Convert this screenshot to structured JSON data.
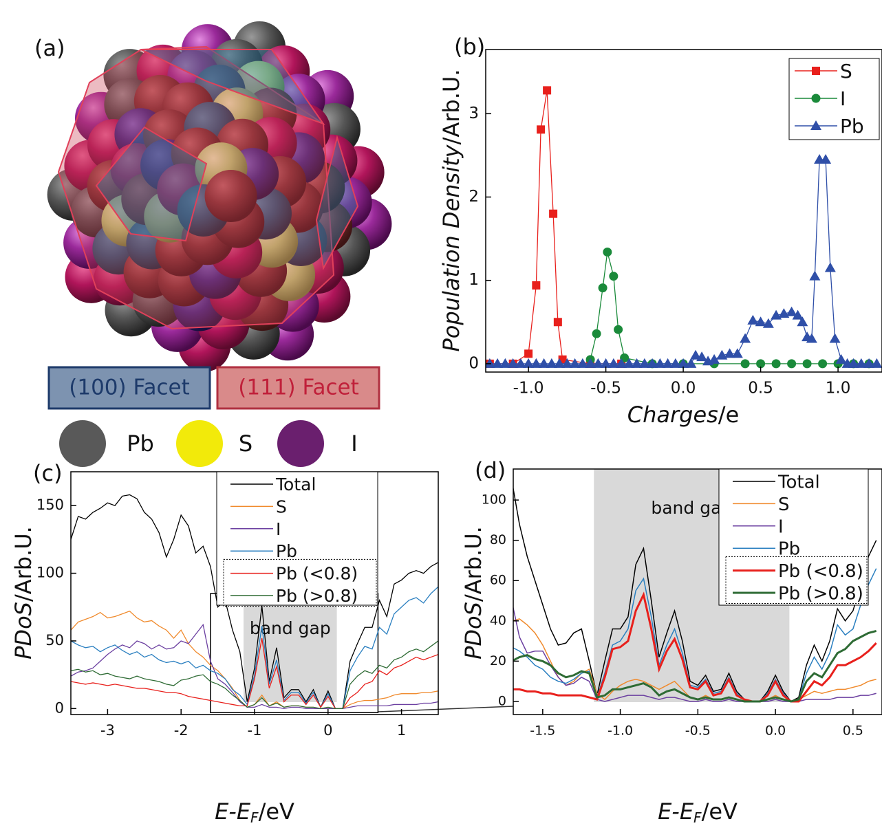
{
  "panel_a": {
    "panel_label": "(a)",
    "facets": [
      "(100) Facet",
      "(111) Facet"
    ],
    "legend": [
      {
        "name": "Pb",
        "color": "#595959"
      },
      {
        "name": "S",
        "color": "#f2ea0a"
      },
      {
        "name": "I",
        "color": "#6a1f6e"
      }
    ]
  },
  "chart_data": [
    {
      "type": "line",
      "panel_label": "(b)",
      "xlabel": {
        "italic": "Charges",
        "unit": "/e"
      },
      "ylabel": {
        "italic": "Population Density",
        "unit": "/Arb.U."
      },
      "xlim": [
        -1.276,
        1.284
      ],
      "ylim": [
        -0.1,
        3.77
      ],
      "xticks": [
        {
          "value": -1,
          "label": "-1.0"
        },
        -0.5,
        {
          "value": 0,
          "label": "0.0"
        },
        0.5,
        {
          "value": 1,
          "label": "1.0"
        }
      ],
      "yticks": [
        0,
        1,
        2,
        3
      ],
      "series": [
        {
          "name": "S",
          "color": "#e8201c",
          "marker": "square",
          "x": [
            -1.25,
            -1.1,
            -1.0,
            -0.95,
            -0.92,
            -0.88,
            -0.84,
            -0.81,
            -0.78,
            -0.6,
            -0.4
          ],
          "values": [
            0,
            0,
            0.12,
            0.94,
            2.81,
            3.28,
            1.8,
            0.5,
            0.05,
            0,
            0
          ]
        },
        {
          "name": "I",
          "color": "#1a8a3a",
          "marker": "circle",
          "x": [
            -0.6,
            -0.56,
            -0.52,
            -0.49,
            -0.45,
            -0.42,
            -0.38,
            -0.2,
            0.0,
            0.2,
            0.4,
            0.5,
            0.6,
            0.7,
            0.8,
            0.9,
            1.0,
            1.1,
            1.2
          ],
          "values": [
            0.05,
            0.36,
            0.91,
            1.34,
            1.05,
            0.41,
            0.07,
            0,
            0,
            0,
            0,
            0,
            0,
            0,
            0,
            0,
            0,
            0,
            0
          ]
        },
        {
          "name": "Pb",
          "color": "#2f4fa8",
          "marker": "triangle",
          "x": [
            -1.25,
            -1.2,
            -1.15,
            -1.1,
            -1.05,
            -1.0,
            -0.95,
            -0.9,
            -0.85,
            -0.8,
            -0.75,
            -0.7,
            -0.65,
            -0.6,
            -0.55,
            -0.5,
            -0.45,
            -0.4,
            -0.35,
            -0.3,
            -0.25,
            -0.2,
            -0.15,
            -0.1,
            -0.05,
            0.0,
            0.05,
            0.08,
            0.12,
            0.16,
            0.2,
            0.25,
            0.3,
            0.35,
            0.4,
            0.45,
            0.5,
            0.55,
            0.6,
            0.65,
            0.7,
            0.74,
            0.77,
            0.8,
            0.83,
            0.85,
            0.88,
            0.92,
            0.95,
            0.98,
            1.02,
            1.06,
            1.1,
            1.15,
            1.2,
            1.25
          ],
          "values": [
            0,
            0,
            0,
            0,
            0,
            0,
            0,
            0,
            0,
            0,
            0,
            0,
            0,
            0,
            0,
            0,
            0,
            0,
            0,
            0,
            0,
            0,
            0,
            0,
            0,
            0,
            0,
            0.1,
            0.08,
            0.03,
            0.05,
            0.1,
            0.12,
            0.12,
            0.3,
            0.52,
            0.5,
            0.48,
            0.58,
            0.6,
            0.62,
            0.58,
            0.5,
            0.32,
            0.3,
            1.05,
            2.45,
            2.45,
            1.15,
            0.3,
            0.05,
            0,
            0,
            0,
            0,
            0
          ]
        }
      ]
    },
    {
      "type": "line",
      "panel_label": "(c)",
      "xlabel": {
        "italic": "E-E",
        "sub": "F",
        "unit": "/eV"
      },
      "ylabel": {
        "italic": "PDoS",
        "unit": "/Arb.U."
      },
      "xlim": [
        -3.5,
        1.5
      ],
      "ylim": [
        -4.4,
        175
      ],
      "xticks": [
        -3,
        -2,
        -1,
        0,
        1
      ],
      "yticks": [
        0,
        50,
        100,
        150
      ],
      "band_gap": {
        "label": "band gap",
        "xrange": [
          -1.15,
          0.12
        ]
      },
      "zoom_box": {
        "xrange": [
          -1.6,
          0.68
        ],
        "yrange": [
          -3,
          85
        ]
      },
      "x": [
        -3.5,
        -3.4,
        -3.3,
        -3.2,
        -3.1,
        -3.0,
        -2.9,
        -2.8,
        -2.7,
        -2.6,
        -2.5,
        -2.4,
        -2.3,
        -2.2,
        -2.1,
        -2.0,
        -1.9,
        -1.8,
        -1.7,
        -1.6,
        -1.5,
        -1.4,
        -1.3,
        -1.2,
        -1.1,
        -1.0,
        -0.9,
        -0.8,
        -0.7,
        -0.6,
        -0.5,
        -0.4,
        -0.3,
        -0.2,
        -0.1,
        0.0,
        0.1,
        0.2,
        0.3,
        0.4,
        0.5,
        0.6,
        0.7,
        0.8,
        0.9,
        1.0,
        1.1,
        1.2,
        1.3,
        1.4,
        1.5
      ],
      "series": [
        {
          "name": "Total",
          "color": "#000000",
          "values": [
            125,
            142,
            140,
            145,
            148,
            152,
            150,
            157,
            158,
            155,
            145,
            140,
            130,
            112,
            125,
            143,
            135,
            115,
            120,
            105,
            75,
            80,
            58,
            42,
            5,
            30,
            76,
            20,
            45,
            8,
            14,
            14,
            5,
            14,
            1,
            13,
            0,
            0,
            35,
            48,
            60,
            60,
            80,
            68,
            92,
            95,
            100,
            102,
            100,
            105,
            108
          ]
        },
        {
          "name": "S",
          "color": "#f08a2c",
          "values": [
            58,
            64,
            66,
            68,
            71,
            67,
            68,
            70,
            72,
            67,
            64,
            65,
            61,
            58,
            52,
            58,
            48,
            42,
            38,
            32,
            28,
            22,
            15,
            6,
            1,
            3,
            10,
            2,
            5,
            1,
            2,
            2,
            1,
            1,
            0,
            1,
            0,
            0,
            3,
            5,
            6,
            6,
            7,
            8,
            10,
            11,
            11,
            11,
            12,
            12,
            13
          ]
        },
        {
          "name": "I",
          "color": "#6b3fa0",
          "values": [
            24,
            27,
            28,
            30,
            35,
            40,
            44,
            47,
            45,
            50,
            48,
            44,
            47,
            44,
            45,
            50,
            48,
            55,
            62,
            35,
            22,
            18,
            12,
            5,
            1,
            1,
            3,
            1,
            1,
            0,
            1,
            1,
            0,
            0,
            0,
            0,
            0,
            0,
            1,
            2,
            2,
            2,
            2,
            2,
            3,
            3,
            3,
            3,
            4,
            4,
            5
          ]
        },
        {
          "name": "Pb",
          "color": "#2a7fc0",
          "values": [
            50,
            47,
            45,
            46,
            42,
            45,
            47,
            43,
            40,
            42,
            38,
            40,
            36,
            34,
            35,
            33,
            35,
            30,
            32,
            28,
            26,
            22,
            14,
            10,
            3,
            25,
            61,
            18,
            36,
            6,
            12,
            12,
            4,
            12,
            1,
            11,
            0,
            0,
            28,
            38,
            46,
            44,
            60,
            55,
            70,
            75,
            80,
            82,
            78,
            85,
            90
          ]
        },
        {
          "name": "Pb (<0.8)",
          "color": "#e8201c",
          "values": [
            20,
            19,
            18,
            19,
            18,
            17,
            18,
            17,
            16,
            15,
            15,
            14,
            13,
            12,
            12,
            11,
            9,
            8,
            7,
            6,
            5,
            4,
            3,
            2,
            2,
            22,
            52,
            15,
            31,
            5,
            10,
            10,
            3,
            10,
            1,
            9,
            0,
            0,
            8,
            12,
            18,
            20,
            28,
            25,
            30,
            32,
            35,
            38,
            36,
            38,
            40
          ]
        },
        {
          "name": "Pb (>0.8)",
          "color": "#2e6b34",
          "values": [
            28,
            29,
            27,
            28,
            25,
            26,
            24,
            23,
            22,
            24,
            22,
            21,
            20,
            18,
            17,
            21,
            22,
            24,
            25,
            20,
            18,
            15,
            10,
            6,
            1,
            3,
            8,
            2,
            4,
            1,
            2,
            2,
            1,
            1,
            0,
            1,
            0,
            0,
            18,
            24,
            28,
            26,
            32,
            30,
            36,
            38,
            42,
            44,
            42,
            46,
            50
          ]
        }
      ]
    },
    {
      "type": "line",
      "panel_label": "(d)",
      "xlabel": {
        "italic": "E-E",
        "sub": "F",
        "unit": "/eV"
      },
      "ylabel": {
        "italic": "PDoS",
        "unit": "/Arb.U."
      },
      "xlim": [
        -1.69,
        0.687
      ],
      "ylim": [
        -6.5,
        115.4
      ],
      "xticks": [
        -1.5,
        {
          "value": -1,
          "label": "-1.0"
        },
        -0.5,
        {
          "value": 0,
          "label": "0.0"
        },
        0.5
      ],
      "yticks": [
        0,
        20,
        40,
        60,
        80,
        100
      ],
      "band_gap": {
        "label": "band gap",
        "xrange": [
          -1.17,
          0.09
        ]
      },
      "x": [
        -1.7,
        -1.65,
        -1.6,
        -1.55,
        -1.5,
        -1.45,
        -1.4,
        -1.35,
        -1.3,
        -1.25,
        -1.2,
        -1.15,
        -1.1,
        -1.05,
        -1.0,
        -0.95,
        -0.9,
        -0.85,
        -0.8,
        -0.75,
        -0.7,
        -0.65,
        -0.6,
        -0.55,
        -0.5,
        -0.45,
        -0.4,
        -0.35,
        -0.3,
        -0.25,
        -0.2,
        -0.15,
        -0.1,
        -0.05,
        0.0,
        0.05,
        0.1,
        0.15,
        0.2,
        0.25,
        0.3,
        0.35,
        0.4,
        0.45,
        0.5,
        0.55,
        0.6,
        0.65
      ],
      "series": [
        {
          "name": "Total",
          "color": "#000000",
          "line_width": 1.5,
          "values": [
            110,
            88,
            72,
            60,
            48,
            36,
            28,
            29,
            34,
            36,
            20,
            3,
            20,
            36,
            36,
            42,
            68,
            76,
            50,
            22,
            34,
            45,
            30,
            10,
            8,
            13,
            5,
            6,
            14,
            5,
            1,
            0,
            0,
            5,
            13,
            5,
            0,
            2,
            18,
            28,
            20,
            30,
            46,
            40,
            45,
            58,
            72,
            80
          ]
        },
        {
          "name": "S",
          "color": "#f08a2c",
          "line_width": 1.5,
          "values": [
            40,
            41,
            38,
            34,
            28,
            20,
            12,
            8,
            10,
            14,
            16,
            4,
            1,
            5,
            8,
            10,
            11,
            10,
            8,
            6,
            8,
            10,
            6,
            2,
            1,
            3,
            1,
            1,
            2,
            1,
            0,
            0,
            0,
            1,
            3,
            1,
            0,
            1,
            3,
            5,
            4,
            5,
            6,
            6,
            7,
            8,
            10,
            11
          ]
        },
        {
          "name": "I",
          "color": "#6b3fa0",
          "line_width": 1.5,
          "values": [
            50,
            32,
            24,
            25,
            25,
            18,
            12,
            8,
            9,
            12,
            10,
            1,
            0,
            1,
            2,
            3,
            3,
            3,
            2,
            1,
            2,
            2,
            1,
            0,
            0,
            1,
            0,
            0,
            1,
            0,
            0,
            0,
            0,
            0,
            1,
            0,
            0,
            0,
            1,
            1,
            1,
            1,
            2,
            2,
            2,
            3,
            3,
            4
          ]
        },
        {
          "name": "Pb",
          "color": "#2a7fc0",
          "line_width": 1.5,
          "values": [
            27,
            25,
            22,
            18,
            16,
            12,
            10,
            9,
            11,
            14,
            15,
            2,
            14,
            28,
            30,
            36,
            55,
            61,
            42,
            18,
            28,
            36,
            24,
            8,
            7,
            11,
            4,
            5,
            12,
            4,
            1,
            0,
            0,
            4,
            11,
            4,
            0,
            1,
            14,
            22,
            16,
            24,
            38,
            33,
            36,
            48,
            58,
            66
          ]
        },
        {
          "name": "Pb (<0.8)",
          "color": "#e8201c",
          "line_width": 3,
          "values": [
            6,
            6,
            5,
            5,
            4,
            4,
            3,
            3,
            3,
            3,
            2,
            1,
            12,
            26,
            27,
            30,
            45,
            53,
            36,
            16,
            25,
            31,
            21,
            7,
            6,
            10,
            3,
            4,
            11,
            3,
            1,
            0,
            0,
            3,
            10,
            3,
            0,
            0,
            5,
            10,
            8,
            12,
            18,
            18,
            20,
            22,
            25,
            29
          ]
        },
        {
          "name": "Pb (>0.8)",
          "color": "#2e6b34",
          "line_width": 3,
          "values": [
            20,
            22,
            23,
            21,
            20,
            18,
            14,
            12,
            13,
            15,
            14,
            2,
            3,
            6,
            6,
            7,
            8,
            9,
            7,
            3,
            5,
            6,
            4,
            2,
            1,
            2,
            1,
            1,
            2,
            1,
            0,
            0,
            0,
            1,
            2,
            1,
            0,
            1,
            10,
            14,
            12,
            18,
            24,
            26,
            30,
            32,
            34,
            35
          ]
        }
      ]
    }
  ]
}
